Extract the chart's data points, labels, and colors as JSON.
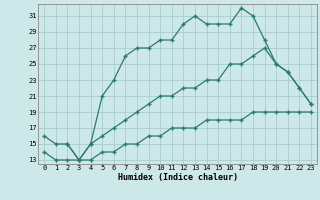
{
  "xlabel": "Humidex (Indice chaleur)",
  "bg_color": "#cce8e8",
  "grid_color": "#aacccc",
  "line_color": "#2d7a6e",
  "xlim": [
    -0.5,
    23.5
  ],
  "ylim": [
    12.5,
    32.5
  ],
  "yticks": [
    13,
    15,
    17,
    19,
    21,
    23,
    25,
    27,
    29,
    31
  ],
  "xticks": [
    0,
    1,
    2,
    3,
    4,
    5,
    6,
    7,
    8,
    9,
    10,
    11,
    12,
    13,
    14,
    15,
    16,
    17,
    18,
    19,
    20,
    21,
    22,
    23
  ],
  "line1_x": [
    0,
    1,
    2,
    3,
    4,
    5,
    6,
    7,
    8,
    9,
    10,
    11,
    12,
    13,
    14,
    15,
    16,
    17,
    18,
    19,
    20,
    21,
    22,
    23
  ],
  "line1_y": [
    16,
    15,
    15,
    13,
    15,
    21,
    23,
    26,
    27,
    27,
    28,
    28,
    30,
    31,
    30,
    30,
    30,
    32,
    31,
    28,
    25,
    24,
    22,
    20
  ],
  "line2_x": [
    2,
    3,
    4,
    5,
    6,
    7,
    8,
    9,
    10,
    11,
    12,
    13,
    14,
    15,
    16,
    17,
    18,
    19,
    20,
    21,
    22,
    23
  ],
  "line2_y": [
    15,
    13,
    15,
    16,
    17,
    18,
    19,
    20,
    21,
    21,
    22,
    22,
    23,
    23,
    25,
    25,
    26,
    27,
    25,
    24,
    22,
    20
  ],
  "line3_x": [
    0,
    1,
    2,
    3,
    4,
    5,
    6,
    7,
    8,
    9,
    10,
    11,
    12,
    13,
    14,
    15,
    16,
    17,
    18,
    19,
    20,
    21,
    22,
    23
  ],
  "line3_y": [
    14,
    13,
    13,
    13,
    13,
    14,
    14,
    15,
    15,
    16,
    16,
    17,
    17,
    17,
    18,
    18,
    18,
    18,
    19,
    19,
    19,
    19,
    19,
    19
  ]
}
